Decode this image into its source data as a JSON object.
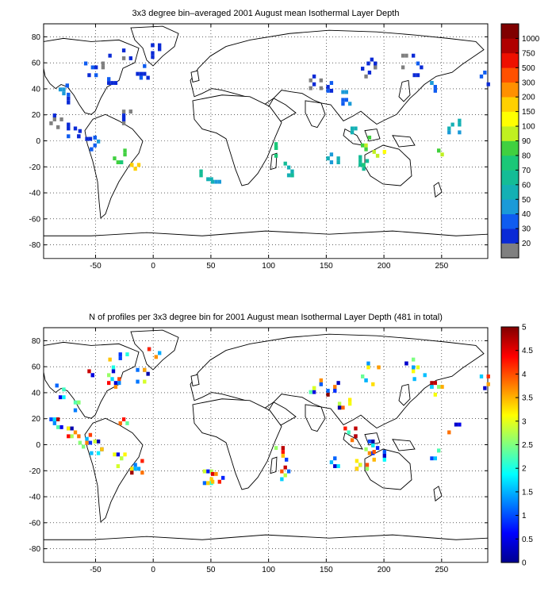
{
  "panels": [
    {
      "title": "3x3 degree bin–averaged 2001 August mean Isothermal Layer Depth",
      "x_ticks": [
        "-50",
        "0",
        "50",
        "100",
        "150",
        "200",
        "250"
      ],
      "y_ticks": [
        "80",
        "60",
        "40",
        "20",
        "0",
        "-20",
        "-40",
        "-60",
        "-80"
      ],
      "colorbar": {
        "labels": [
          "20",
          "30",
          "40",
          "50",
          "60",
          "70",
          "80",
          "90",
          "100",
          "150",
          "200",
          "300",
          "500",
          "750",
          "1000"
        ],
        "colors": [
          "#808080",
          "#0a2ad6",
          "#0f5cf0",
          "#1a9ad8",
          "#14b0b4",
          "#14bc96",
          "#1ac878",
          "#40d040",
          "#c0f020",
          "#ffff00",
          "#ffd000",
          "#ff9000",
          "#ff5000",
          "#ee1000",
          "#b00000",
          "#800000"
        ]
      }
    },
    {
      "title": "N of profiles per 3x3 degree bin for 2001 August mean Isothermal Layer Depth  (481 in total)",
      "x_ticks": [
        "-50",
        "0",
        "50",
        "100",
        "150",
        "200",
        "250"
      ],
      "y_ticks": [
        "80",
        "60",
        "40",
        "20",
        "0",
        "-20",
        "-40",
        "-60",
        "-80"
      ],
      "colorbar": {
        "labels": [
          "0",
          "0.5",
          "1",
          "1.5",
          "2",
          "2.5",
          "3",
          "3.5",
          "4",
          "4.5",
          "5"
        ],
        "min": 0,
        "max": 5
      }
    }
  ]
}
